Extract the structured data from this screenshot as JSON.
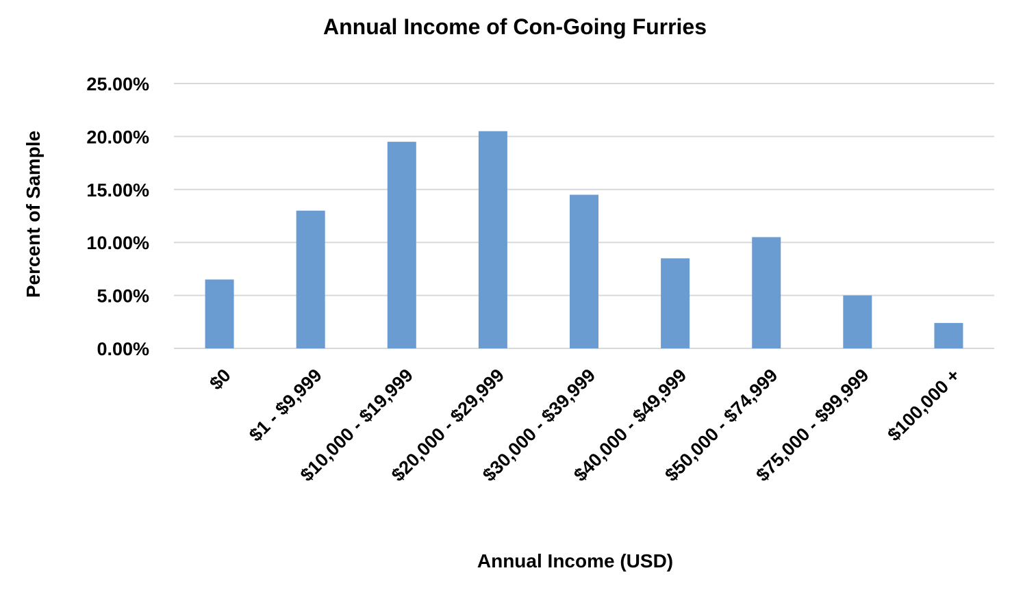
{
  "chart_data": {
    "type": "bar",
    "title": "Annual Income of Con-Going Furries",
    "xlabel": "Annual Income (USD)",
    "ylabel": "Percent of Sample",
    "categories": [
      "$0",
      "$1 - $9,999",
      "$10,000 - $19,999",
      "$20,000 - $29,999",
      "$30,000 - $39,999",
      "$40,000 - $49,999",
      "$50,000 - $74,999",
      "$75,000 - $99,999",
      "$100,000 +"
    ],
    "values": [
      6.5,
      13.0,
      19.5,
      20.5,
      14.5,
      8.5,
      10.5,
      5.0,
      2.4
    ],
    "ylim": [
      0,
      25
    ],
    "yticks": [
      0,
      5,
      10,
      15,
      20,
      25
    ],
    "ytick_labels": [
      "0.00%",
      "5.00%",
      "10.00%",
      "15.00%",
      "20.00%",
      "25.00%"
    ],
    "grid": true,
    "legend": "none",
    "colors": {
      "bar": "#6a9bd1",
      "grid": "#d9d9d9",
      "text": "#000000"
    }
  }
}
